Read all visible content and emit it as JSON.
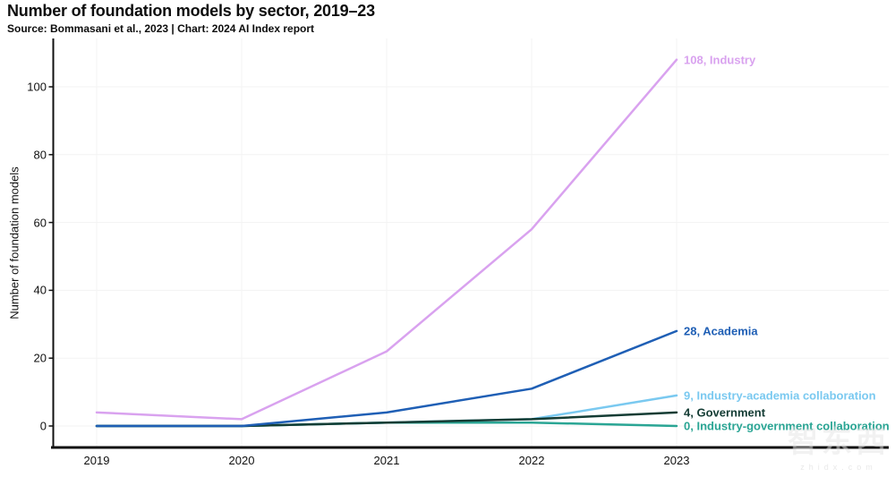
{
  "header": {
    "title": "Number of foundation models by sector, 2019–23",
    "source": "Source: Bommasani et al., 2023 | Chart: 2024 AI Index report"
  },
  "chart_data": {
    "type": "line",
    "title": "Number of foundation models by sector, 2019–23",
    "xlabel": "",
    "ylabel": "Number of foundation models",
    "categories": [
      2019,
      2020,
      2021,
      2022,
      2023
    ],
    "yticks": [
      0,
      20,
      40,
      60,
      80,
      100
    ],
    "ylim": [
      0,
      110
    ],
    "grid": true,
    "legend_position": "end-of-line-labels",
    "series": [
      {
        "name": "Industry",
        "color": "#d9a2ef",
        "values": [
          4,
          2,
          22,
          58,
          108
        ],
        "end_label": "108, Industry"
      },
      {
        "name": "Industry-academia collaboration",
        "color": "#7ac9f0",
        "values": [
          0,
          0,
          1,
          2,
          9
        ],
        "end_label": "9, Industry-academia collaboration"
      },
      {
        "name": "Industry-government collaboration",
        "color": "#2aa594",
        "values": [
          0,
          0,
          1,
          1,
          0
        ],
        "end_label": "0, Industry-government collaboration"
      },
      {
        "name": "Government",
        "color": "#143c34",
        "values": [
          0,
          0,
          1,
          2,
          4
        ],
        "end_label": "4, Government"
      },
      {
        "name": "Academia",
        "color": "#1f5fb5",
        "values": [
          0,
          0,
          4,
          11,
          28
        ],
        "end_label": "28, Academia"
      }
    ]
  },
  "watermark": {
    "logo_text": "智东西",
    "url_text": "zhidx.com"
  }
}
